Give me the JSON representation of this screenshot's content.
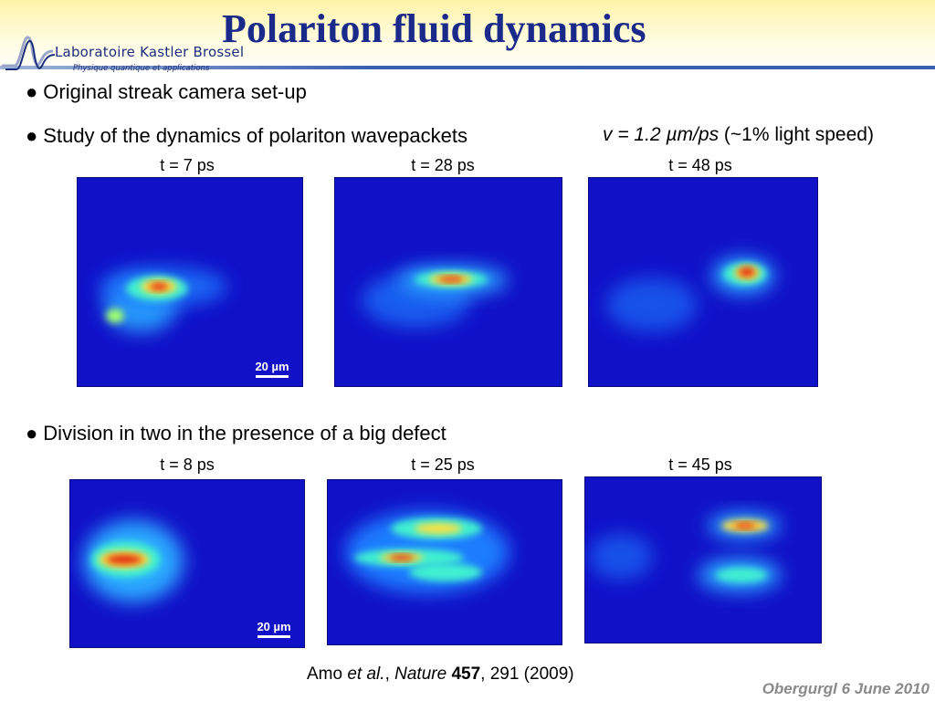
{
  "title": "Polariton fluid dynamics",
  "logo": {
    "name": "Laboratoire Kastler Brossel",
    "subtitle": "Physique quantique et applications"
  },
  "bullets": [
    "Original streak camera set-up",
    "Study of the dynamics of polariton wavepackets",
    "Division in two in the presence of a big defect"
  ],
  "velocity": {
    "equation": "v = 1.2 µm/ps",
    "note": "(~1% light speed)"
  },
  "row1": {
    "times": [
      "t = 7 ps",
      "t = 28 ps",
      "t = 48 ps"
    ],
    "scale_bar": "20 µm"
  },
  "row2": {
    "times": [
      "t = 8 ps",
      "t = 25 ps",
      "t = 45 ps"
    ],
    "scale_bar": "20 µm"
  },
  "citation": {
    "author": "Amo",
    "etal": "et al.",
    "journal": "Nature",
    "volume": "457",
    "rest": ", 291 (2009)"
  },
  "footer": "Obergurgl 6 June 2010",
  "colors": {
    "title": "#1a2a8a",
    "panel_background": "#1111c8",
    "footer": "#8a8a8a"
  }
}
